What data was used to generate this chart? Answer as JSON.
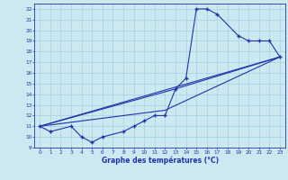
{
  "title": "Graphe des températures (°C)",
  "bg_color": "#cce8f0",
  "plot_bg": "#cce8f0",
  "grid_color": "#99ccdd",
  "line_color": "#2233aa",
  "xlim": [
    -0.5,
    23.5
  ],
  "ylim": [
    9,
    22.5
  ],
  "xticks": [
    0,
    1,
    2,
    3,
    4,
    5,
    6,
    7,
    8,
    9,
    10,
    11,
    12,
    13,
    14,
    15,
    16,
    17,
    18,
    19,
    20,
    21,
    22,
    23
  ],
  "yticks": [
    9,
    10,
    11,
    12,
    13,
    14,
    15,
    16,
    17,
    18,
    19,
    20,
    21,
    22
  ],
  "main_x": [
    0,
    1,
    3,
    4,
    5,
    6,
    8,
    9,
    10,
    11,
    12,
    13,
    14,
    15,
    16,
    17,
    19,
    20,
    21,
    22,
    23
  ],
  "main_y": [
    11.0,
    10.5,
    11.0,
    10.0,
    9.5,
    10.0,
    10.5,
    11.0,
    11.5,
    12.0,
    12.0,
    14.5,
    15.5,
    22.0,
    22.0,
    21.5,
    19.5,
    19.0,
    19.0,
    19.0,
    17.5
  ],
  "line1_x": [
    0,
    23
  ],
  "line1_y": [
    11.0,
    17.5
  ],
  "line2_x": [
    0,
    12,
    23
  ],
  "line2_y": [
    11.0,
    12.5,
    17.5
  ],
  "line3_x": [
    0,
    13,
    23
  ],
  "line3_y": [
    11.0,
    14.5,
    17.5
  ]
}
